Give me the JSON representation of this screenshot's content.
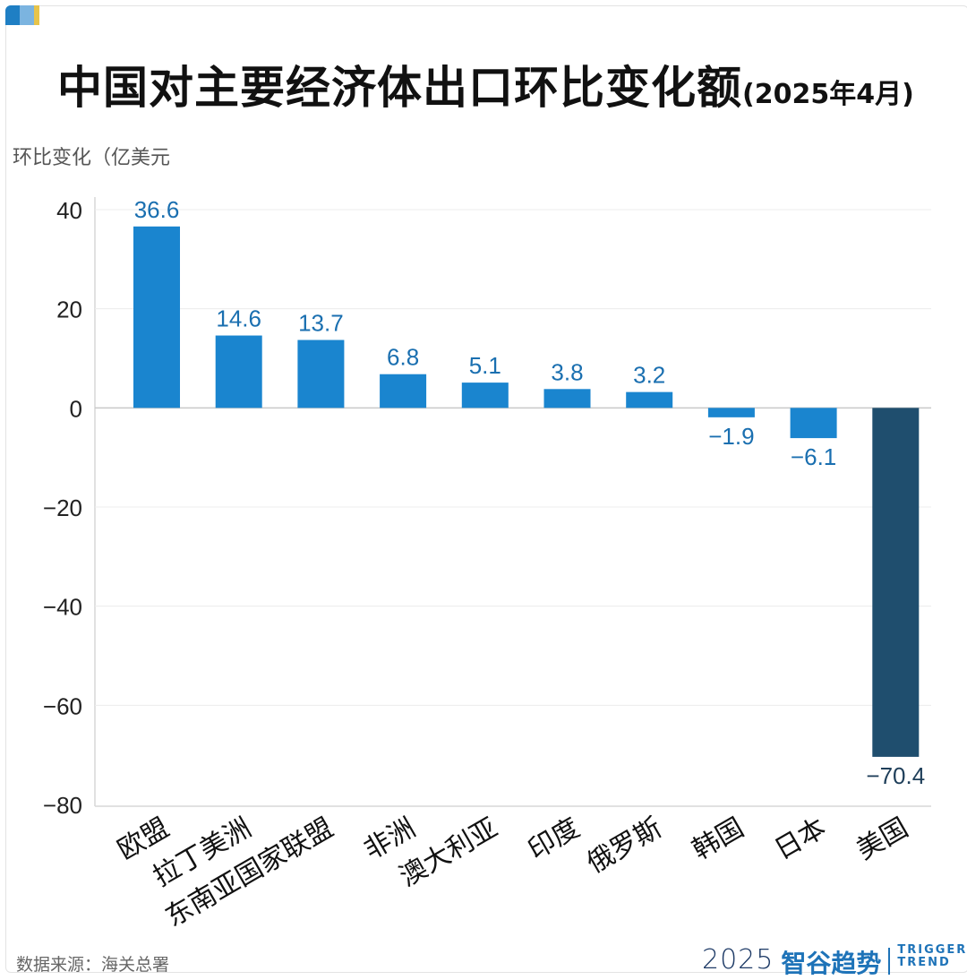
{
  "title": {
    "main": "中国对主要经济体出口环比变化额",
    "suffix": "(2025年4月)"
  },
  "yaxis_unit_label": "环比变化（亿美元",
  "source": "数据来源：海关总署",
  "brand": {
    "year": "2025",
    "cn": "智谷趋势",
    "en_line1": "TRIGGER",
    "en_line2": "TREND"
  },
  "colors": {
    "positive_bar": "#1a85cf",
    "negative_bar": "#1a85cf",
    "highlight_bar": "#1f4e6e",
    "label_positive": "#1a6fb0",
    "label_negative": "#1a6fb0",
    "label_highlight": "#1f3f5a"
  },
  "chart_data": {
    "type": "bar",
    "categories": [
      "欧盟",
      "拉丁美洲",
      "东南亚国家联盟",
      "非洲",
      "澳大利亚",
      "印度",
      "俄罗斯",
      "韩国",
      "日本",
      "美国"
    ],
    "values": [
      36.6,
      14.6,
      13.7,
      6.8,
      5.1,
      3.8,
      3.2,
      -1.9,
      -6.1,
      -70.4
    ],
    "value_labels": [
      "36.6",
      "14.6",
      "13.7",
      "6.8",
      "5.1",
      "3.8",
      "3.2",
      "−1.9",
      "−6.1",
      "−70.4"
    ],
    "highlight_category": "美国",
    "ylim": [
      -80,
      40
    ],
    "yticks": [
      40,
      20,
      0,
      -20,
      -40,
      -60,
      -80
    ],
    "ytick_labels": [
      "40",
      "20",
      "0",
      "−20",
      "−40",
      "−60",
      "−80"
    ],
    "grid": true,
    "ylabel": "环比变化（亿美元",
    "xlabel": ""
  }
}
